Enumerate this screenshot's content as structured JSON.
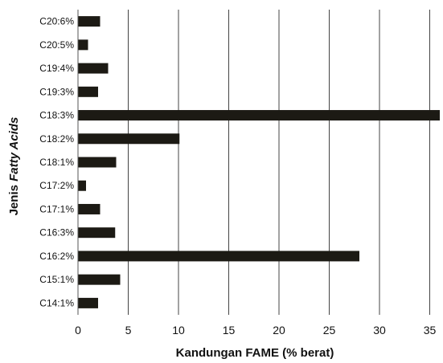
{
  "chart_data": {
    "type": "bar",
    "orientation": "horizontal",
    "title": "",
    "xlabel": "Kandungan FAME (% berat)",
    "ylabel_prefix": "Jenis ",
    "ylabel_italic": "Fatty Acids",
    "xlim": [
      0,
      36
    ],
    "xticks": [
      0,
      5,
      10,
      15,
      20,
      25,
      30,
      35
    ],
    "grid": "vertical",
    "bar_color": "#1c1a14",
    "categories": [
      "C14:1%",
      "C15:1%",
      "C16:2%",
      "C16:3%",
      "C17:1%",
      "C17:2%",
      "C18:1%",
      "C18:2%",
      "C18:3%",
      "C19:3%",
      "C19:4%",
      "C20:5%",
      "C20:6%"
    ],
    "values": [
      2.0,
      4.2,
      28.0,
      3.7,
      2.2,
      0.8,
      3.8,
      10.1,
      36.0,
      2.0,
      3.0,
      1.0,
      2.2
    ]
  }
}
